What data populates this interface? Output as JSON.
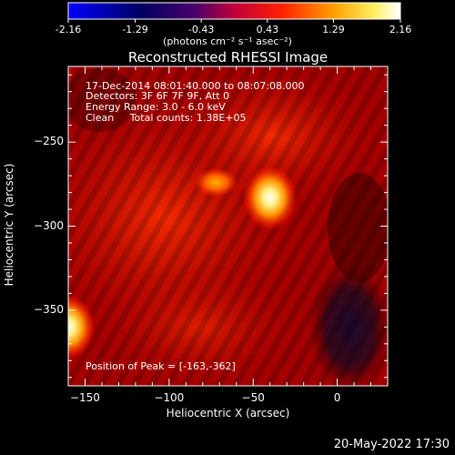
{
  "chart_data": {
    "type": "heatmap",
    "title": "Reconstructed RHESSI Image",
    "colorbar": {
      "ticks": [
        "-2.16",
        "-1.29",
        "-0.43",
        "0.43",
        "1.29",
        "2.16"
      ],
      "range": [
        -2.16,
        2.16
      ],
      "unit_label": "(photons cm⁻² s⁻¹ asec⁻²)"
    },
    "xlabel": "Heliocentric X (arcsec)",
    "ylabel": "Heliocentric Y (arcsec)",
    "xlim": [
      -160,
      30
    ],
    "ylim": [
      -395,
      -205
    ],
    "x_ticks": [
      -150,
      -100,
      -50,
      0
    ],
    "y_ticks": [
      -250,
      -300,
      -350
    ],
    "annotations": [
      "17-Dec-2014 08:01:40.000 to 08:07:08.000",
      "Detectors: 3F 6F 7F 9F, Att 0",
      "Energy Range: 3.0 - 6.0 keV",
      "Clean     Total counts: 1.38E+05"
    ],
    "peak_label": "Position of Peak = [-163,-362]",
    "sources": [
      {
        "x": -160,
        "y": -360,
        "value": 2.16
      },
      {
        "x": -40,
        "y": -283,
        "value": 2.0
      },
      {
        "x": -72,
        "y": -274,
        "value": 1.5
      }
    ]
  },
  "footer": {
    "timestamp": "20-May-2022 17:30"
  }
}
